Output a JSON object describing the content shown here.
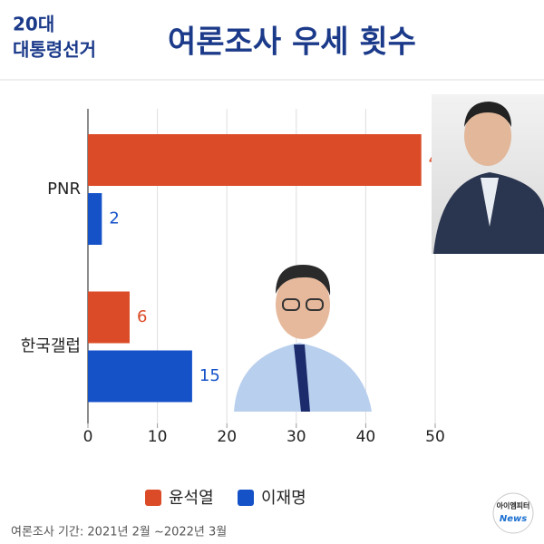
{
  "chart_data": {
    "type": "hbar",
    "title": "여론조사 우세 횟수",
    "badge": [
      "20대",
      "대통령선거"
    ],
    "categories": [
      "PNR",
      "한국갤럽"
    ],
    "series": [
      {
        "name": "윤석열",
        "color": "#db4b27",
        "values": [
          48,
          6
        ]
      },
      {
        "name": "이재명",
        "color": "#1552c8",
        "values": [
          2,
          15
        ]
      }
    ],
    "xlim": [
      0,
      50
    ],
    "xticks": [
      0,
      10,
      20,
      30,
      40,
      50
    ],
    "grid": true,
    "note": "여론조사 기간: 2021년 2월 ~2022년 3월",
    "logo": [
      "아이엠피터",
      "News"
    ]
  }
}
